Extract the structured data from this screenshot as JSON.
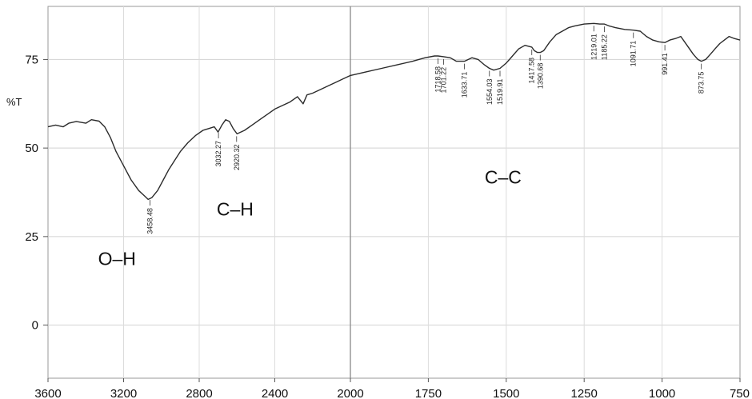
{
  "chart_data": {
    "type": "line",
    "title": "",
    "xlabel": "",
    "ylabel": "%T",
    "x_reversed": true,
    "x_scale": "piecewise-linear",
    "x_ticks": [
      3600,
      3200,
      2800,
      2400,
      2000,
      1750,
      1500,
      1250,
      1000,
      750
    ],
    "y_ticks": [
      0,
      25,
      50,
      75
    ],
    "ylim": [
      -15,
      90
    ],
    "grid": true,
    "series": [
      {
        "name": "",
        "points": [
          [
            3600,
            56
          ],
          [
            3560,
            56.5
          ],
          [
            3520,
            56
          ],
          [
            3490,
            57
          ],
          [
            3450,
            57.5
          ],
          [
            3400,
            57
          ],
          [
            3370,
            58
          ],
          [
            3330,
            57.6
          ],
          [
            3300,
            56
          ],
          [
            3270,
            53
          ],
          [
            3240,
            49
          ],
          [
            3200,
            45
          ],
          [
            3160,
            41
          ],
          [
            3120,
            38
          ],
          [
            3090,
            36.5
          ],
          [
            3070,
            35.5
          ],
          [
            3050,
            36
          ],
          [
            3020,
            38
          ],
          [
            2990,
            41
          ],
          [
            2960,
            44
          ],
          [
            2930,
            46.5
          ],
          [
            2900,
            49
          ],
          [
            2860,
            51.5
          ],
          [
            2820,
            53.5
          ],
          [
            2780,
            55
          ],
          [
            2750,
            55.5
          ],
          [
            2720,
            56
          ],
          [
            2700,
            54.5
          ],
          [
            2680,
            56.5
          ],
          [
            2660,
            58
          ],
          [
            2640,
            57.5
          ],
          [
            2620,
            55.5
          ],
          [
            2600,
            54
          ],
          [
            2560,
            55
          ],
          [
            2520,
            56.5
          ],
          [
            2480,
            58
          ],
          [
            2440,
            59.5
          ],
          [
            2400,
            61
          ],
          [
            2360,
            62
          ],
          [
            2320,
            63
          ],
          [
            2280,
            64.5
          ],
          [
            2250,
            62.5
          ],
          [
            2230,
            65
          ],
          [
            2200,
            65.5
          ],
          [
            2160,
            66.5
          ],
          [
            2120,
            67.5
          ],
          [
            2080,
            68.5
          ],
          [
            2040,
            69.5
          ],
          [
            2000,
            70.5
          ],
          [
            1950,
            71.5
          ],
          [
            1900,
            72.5
          ],
          [
            1850,
            73.5
          ],
          [
            1800,
            74.5
          ],
          [
            1760,
            75.5
          ],
          [
            1730,
            76
          ],
          [
            1719,
            76
          ],
          [
            1701,
            75.8
          ],
          [
            1680,
            75.5
          ],
          [
            1660,
            74.5
          ],
          [
            1634,
            74.5
          ],
          [
            1610,
            75.5
          ],
          [
            1590,
            75
          ],
          [
            1570,
            73.5
          ],
          [
            1554,
            72.5
          ],
          [
            1540,
            72
          ],
          [
            1520,
            72.5
          ],
          [
            1500,
            74
          ],
          [
            1480,
            76
          ],
          [
            1460,
            78
          ],
          [
            1440,
            79
          ],
          [
            1418,
            78.5
          ],
          [
            1410,
            77.5
          ],
          [
            1400,
            77
          ],
          [
            1391,
            77
          ],
          [
            1380,
            77.5
          ],
          [
            1360,
            80
          ],
          [
            1340,
            82
          ],
          [
            1320,
            83
          ],
          [
            1300,
            84
          ],
          [
            1280,
            84.5
          ],
          [
            1250,
            85
          ],
          [
            1219,
            85.2
          ],
          [
            1200,
            85
          ],
          [
            1185,
            85
          ],
          [
            1170,
            84.5
          ],
          [
            1150,
            84
          ],
          [
            1120,
            83.5
          ],
          [
            1092,
            83.3
          ],
          [
            1070,
            83
          ],
          [
            1050,
            81.5
          ],
          [
            1030,
            80.5
          ],
          [
            1010,
            80
          ],
          [
            991,
            79.8
          ],
          [
            975,
            80.5
          ],
          [
            955,
            81
          ],
          [
            940,
            81.5
          ],
          [
            920,
            79
          ],
          [
            900,
            76.5
          ],
          [
            885,
            75
          ],
          [
            874,
            74.5
          ],
          [
            860,
            75
          ],
          [
            845,
            76.5
          ],
          [
            830,
            78
          ],
          [
            815,
            79.5
          ],
          [
            800,
            80.5
          ],
          [
            785,
            81.5
          ],
          [
            770,
            81
          ],
          [
            750,
            80.5
          ]
        ]
      }
    ],
    "peak_labels": [
      {
        "text": "3458.48",
        "x": 3060,
        "y": 36
      },
      {
        "text": "3032.27",
        "x": 2698,
        "y": 55
      },
      {
        "text": "2920.32",
        "x": 2602,
        "y": 54
      },
      {
        "text": "1718.58",
        "x": 1719,
        "y": 76
      },
      {
        "text": "1701.22",
        "x": 1701,
        "y": 75.8
      },
      {
        "text": "1633.71",
        "x": 1634,
        "y": 74.5
      },
      {
        "text": "1554.03",
        "x": 1554,
        "y": 72.5
      },
      {
        "text": "1519.91",
        "x": 1520,
        "y": 72.5
      },
      {
        "text": "1417.58",
        "x": 1418,
        "y": 78.5
      },
      {
        "text": "1390.68",
        "x": 1391,
        "y": 77
      },
      {
        "text": "1219.01",
        "x": 1219,
        "y": 85.2
      },
      {
        "text": "1185.22",
        "x": 1185,
        "y": 85
      },
      {
        "text": "1091.71",
        "x": 1092,
        "y": 83.3
      },
      {
        "text": "991.41",
        "x": 991,
        "y": 79.8
      },
      {
        "text": "873.75",
        "x": 874,
        "y": 74.5
      }
    ],
    "annotations": [
      {
        "text": "O–H",
        "x": 3235,
        "y": 17
      },
      {
        "text": "C–H",
        "x": 2610,
        "y": 31
      },
      {
        "text": "C–C",
        "x": 1510,
        "y": 40
      }
    ]
  }
}
